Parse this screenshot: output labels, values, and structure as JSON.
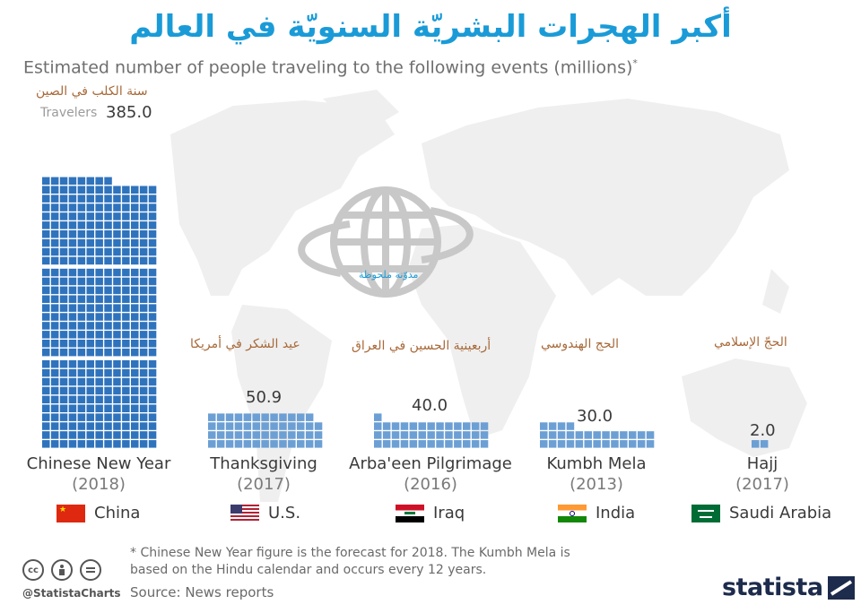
{
  "title": "أكبر الهجرات البشريّة السنويّة في العالم",
  "subtitle": "Estimated number of people traveling to the following events (millions)",
  "subtitle_mark": "*",
  "units_label": "Travelers",
  "watermark": "مدوّنة ملحوظة",
  "chart_data": {
    "type": "bar",
    "title": "Estimated number of people traveling to the following events (millions)",
    "categories": [
      "Chinese New Year (2018)",
      "Thanksgiving (2017)",
      "Arba'een Pilgrimage (2016)",
      "Kumbh Mela (2013)",
      "Hajj (2017)"
    ],
    "series": [
      {
        "name": "Travelers",
        "values": [
          385.0,
          50.9,
          40.0,
          30.0,
          2.0
        ]
      }
    ],
    "value_labels": [
      "385.0",
      "50.9",
      "40.0",
      "30.0",
      "2.0"
    ],
    "unit": "millions",
    "grid": false,
    "legend": "none",
    "events": [
      {
        "name": "Chinese New Year",
        "year": "(2018)",
        "arabic": "سنة الكلب في الصين",
        "country": "China",
        "flag": "china-flag-icon"
      },
      {
        "name": "Thanksgiving",
        "year": "(2017)",
        "arabic": "عيد الشكر في أمريكا",
        "country": "U.S.",
        "flag": "us-flag-icon"
      },
      {
        "name": "Arba'een Pilgrimage",
        "year": "(2016)",
        "arabic": "أربعينية الحسين في العراق",
        "country": "Iraq",
        "flag": "iraq-flag-icon"
      },
      {
        "name": "Kumbh Mela",
        "year": "(2013)",
        "arabic": "الحج الهندوسي",
        "country": "India",
        "flag": "india-flag-icon"
      },
      {
        "name": "Hajj",
        "year": "(2017)",
        "arabic": "الحجّ الإسلامي",
        "country": "Saudi Arabia",
        "flag": "saudi-flag-icon"
      }
    ]
  },
  "colors": {
    "bar_dark": "#2f73bd",
    "bar_light": "#6c9fd4",
    "title": "#1a9bd7",
    "arabic_label": "#a86a3a",
    "brand": "#1d2b4c",
    "map": "#efefef"
  },
  "footnote": "* Chinese New Year figure is the forecast for 2018. The Kumbh Mela is based on the Hindu calendar and occurs every 12 years.",
  "source": "Source: News reports",
  "social": {
    "handle": "@StatistaCharts",
    "license_icons": [
      "cc-icon",
      "by-icon",
      "nd-icon"
    ]
  },
  "brand": "statista"
}
